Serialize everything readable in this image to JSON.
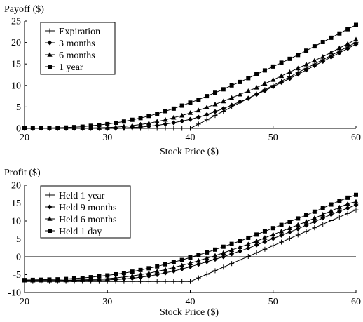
{
  "chart_data": [
    {
      "type": "line",
      "title": "",
      "ylabel": "Payoff ($)",
      "xlabel": "Stock Price ($)",
      "xlim": [
        20,
        60
      ],
      "ylim": [
        0,
        25
      ],
      "xticks": [
        20,
        30,
        40,
        50,
        60
      ],
      "yticks": [
        0,
        5,
        10,
        15,
        20,
        25
      ],
      "zero_line": false,
      "legend_position": "top-left",
      "series": [
        {
          "name": "Expiration",
          "marker": "plus",
          "x": [
            20,
            21,
            22,
            23,
            24,
            25,
            26,
            27,
            28,
            29,
            30,
            31,
            32,
            33,
            34,
            35,
            36,
            37,
            38,
            39,
            40,
            41,
            42,
            43,
            44,
            45,
            46,
            47,
            48,
            49,
            50,
            51,
            52,
            53,
            54,
            55,
            56,
            57,
            58,
            59,
            60
          ],
          "y": [
            0,
            0,
            0,
            0,
            0,
            0,
            0,
            0,
            0,
            0,
            0,
            0,
            0,
            0,
            0,
            0,
            0,
            0,
            0,
            0,
            0,
            1,
            2,
            3,
            4,
            5,
            6,
            7,
            8,
            9,
            10,
            11,
            12,
            13,
            14,
            15,
            16,
            17,
            18,
            19,
            20
          ]
        },
        {
          "name": "3 months",
          "marker": "diamond",
          "x": [
            20,
            21,
            22,
            23,
            24,
            25,
            26,
            27,
            28,
            29,
            30,
            31,
            32,
            33,
            34,
            35,
            36,
            37,
            38,
            39,
            40,
            41,
            42,
            43,
            44,
            45,
            46,
            47,
            48,
            49,
            50,
            51,
            52,
            53,
            54,
            55,
            56,
            57,
            58,
            59,
            60
          ],
          "y": [
            0,
            0,
            0,
            0,
            0,
            0,
            0,
            0,
            0,
            0,
            0,
            0.05,
            0.1,
            0.2,
            0.3,
            0.5,
            0.7,
            1.0,
            1.3,
            1.7,
            2.1,
            2.6,
            3.2,
            3.9,
            4.6,
            5.4,
            6.2,
            7.0,
            7.9,
            8.8,
            9.7,
            10.7,
            11.6,
            12.6,
            13.6,
            14.6,
            15.6,
            16.6,
            17.6,
            18.6,
            19.6
          ]
        },
        {
          "name": "6 months",
          "marker": "triangle",
          "x": [
            20,
            21,
            22,
            23,
            24,
            25,
            26,
            27,
            28,
            29,
            30,
            31,
            32,
            33,
            34,
            35,
            36,
            37,
            38,
            39,
            40,
            41,
            42,
            43,
            44,
            45,
            46,
            47,
            48,
            49,
            50,
            51,
            52,
            53,
            54,
            55,
            56,
            57,
            58,
            59,
            60
          ],
          "y": [
            0,
            0,
            0,
            0,
            0,
            0,
            0,
            0.05,
            0.1,
            0.15,
            0.2,
            0.3,
            0.45,
            0.65,
            0.9,
            1.2,
            1.6,
            2.0,
            2.5,
            3.0,
            3.6,
            4.2,
            4.9,
            5.6,
            6.3,
            7.1,
            7.9,
            8.7,
            9.5,
            10.4,
            11.3,
            12.2,
            13.1,
            14.0,
            14.9,
            15.8,
            16.7,
            17.7,
            18.7,
            19.7,
            20.7
          ]
        },
        {
          "name": "1 year",
          "marker": "square",
          "x": [
            20,
            21,
            22,
            23,
            24,
            25,
            26,
            27,
            28,
            29,
            30,
            31,
            32,
            33,
            34,
            35,
            36,
            37,
            38,
            39,
            40,
            41,
            42,
            43,
            44,
            45,
            46,
            47,
            48,
            49,
            50,
            51,
            52,
            53,
            54,
            55,
            56,
            57,
            58,
            59,
            60
          ],
          "y": [
            0,
            0,
            0.05,
            0.1,
            0.15,
            0.2,
            0.3,
            0.4,
            0.6,
            0.8,
            1.0,
            1.3,
            1.6,
            2.0,
            2.4,
            2.9,
            3.4,
            4.0,
            4.6,
            5.3,
            6.0,
            6.7,
            7.5,
            8.3,
            9.1,
            10.0,
            10.8,
            11.7,
            12.6,
            13.5,
            14.4,
            15.3,
            16.2,
            17.1,
            18.1,
            19.1,
            20.1,
            21.1,
            22.1,
            23.1,
            24.1
          ]
        }
      ]
    },
    {
      "type": "line",
      "title": "",
      "ylabel": "Profit ($)",
      "xlabel": "Stock Price ($)",
      "xlim": [
        20,
        60
      ],
      "ylim": [
        -10,
        20
      ],
      "xticks": [
        20,
        30,
        40,
        50,
        60
      ],
      "yticks": [
        -10,
        -5,
        0,
        5,
        10,
        15,
        20
      ],
      "zero_line": true,
      "legend_position": "top-left",
      "series": [
        {
          "name": "Held 1 year",
          "marker": "plus",
          "x": [
            20,
            21,
            22,
            23,
            24,
            25,
            26,
            27,
            28,
            29,
            30,
            31,
            32,
            33,
            34,
            35,
            36,
            37,
            38,
            39,
            40,
            41,
            42,
            43,
            44,
            45,
            46,
            47,
            48,
            49,
            50,
            51,
            52,
            53,
            54,
            55,
            56,
            57,
            58,
            59,
            60
          ],
          "y": [
            -6.9,
            -6.9,
            -6.9,
            -6.9,
            -6.9,
            -6.9,
            -6.9,
            -6.9,
            -6.9,
            -6.9,
            -6.9,
            -6.9,
            -6.9,
            -6.9,
            -6.9,
            -6.9,
            -6.9,
            -6.9,
            -6.9,
            -6.9,
            -6.9,
            -5.9,
            -4.9,
            -3.9,
            -2.9,
            -1.9,
            -0.9,
            0.1,
            1.1,
            2.1,
            3.1,
            4.1,
            5.1,
            6.1,
            7.1,
            8.1,
            9.1,
            10.1,
            11.1,
            12.1,
            13.1
          ]
        },
        {
          "name": "Held 9 months",
          "marker": "diamond",
          "x": [
            20,
            21,
            22,
            23,
            24,
            25,
            26,
            27,
            28,
            29,
            30,
            31,
            32,
            33,
            34,
            35,
            36,
            37,
            38,
            39,
            40,
            41,
            42,
            43,
            44,
            45,
            46,
            47,
            48,
            49,
            50,
            51,
            52,
            53,
            54,
            55,
            56,
            57,
            58,
            59,
            60
          ],
          "y": [
            -6.6,
            -6.6,
            -6.6,
            -6.6,
            -6.6,
            -6.6,
            -6.6,
            -6.6,
            -6.55,
            -6.5,
            -6.45,
            -6.35,
            -6.2,
            -6.0,
            -5.7,
            -5.4,
            -5.0,
            -4.5,
            -4.0,
            -3.4,
            -2.8,
            -2.1,
            -1.4,
            -0.7,
            0.0,
            0.8,
            1.6,
            2.4,
            3.3,
            4.2,
            5.1,
            6.0,
            6.9,
            7.8,
            8.8,
            9.8,
            10.8,
            11.8,
            12.7,
            13.6,
            14.5
          ]
        },
        {
          "name": "Held 6 months",
          "marker": "triangle",
          "x": [
            20,
            21,
            22,
            23,
            24,
            25,
            26,
            27,
            28,
            29,
            30,
            31,
            32,
            33,
            34,
            35,
            36,
            37,
            38,
            39,
            40,
            41,
            42,
            43,
            44,
            45,
            46,
            47,
            48,
            49,
            50,
            51,
            52,
            53,
            54,
            55,
            56,
            57,
            58,
            59,
            60
          ],
          "y": [
            -6.6,
            -6.6,
            -6.6,
            -6.6,
            -6.6,
            -6.55,
            -6.5,
            -6.45,
            -6.35,
            -6.25,
            -6.1,
            -5.9,
            -5.65,
            -5.35,
            -5.0,
            -4.6,
            -4.1,
            -3.6,
            -3.0,
            -2.4,
            -1.8,
            -1.1,
            -0.4,
            0.3,
            1.1,
            1.9,
            2.7,
            3.5,
            4.4,
            5.3,
            6.2,
            7.1,
            8.0,
            8.9,
            9.8,
            10.8,
            11.8,
            12.8,
            13.8,
            14.8,
            15.4
          ]
        },
        {
          "name": "Held 1 day",
          "marker": "square",
          "x": [
            20,
            21,
            22,
            23,
            24,
            25,
            26,
            27,
            28,
            29,
            30,
            31,
            32,
            33,
            34,
            35,
            36,
            37,
            38,
            39,
            40,
            41,
            42,
            43,
            44,
            45,
            46,
            47,
            48,
            49,
            50,
            51,
            52,
            53,
            54,
            55,
            56,
            57,
            58,
            59,
            60
          ],
          "y": [
            -6.5,
            -6.45,
            -6.4,
            -6.35,
            -6.3,
            -6.2,
            -6.05,
            -5.9,
            -5.7,
            -5.45,
            -5.2,
            -4.9,
            -4.55,
            -4.15,
            -3.7,
            -3.2,
            -2.7,
            -2.1,
            -1.5,
            -0.9,
            -0.2,
            0.5,
            1.2,
            2.0,
            2.8,
            3.6,
            4.4,
            5.3,
            6.2,
            7.1,
            8.0,
            8.9,
            9.8,
            10.7,
            11.6,
            12.6,
            13.6,
            14.6,
            15.6,
            16.5,
            17.3
          ]
        }
      ]
    }
  ]
}
